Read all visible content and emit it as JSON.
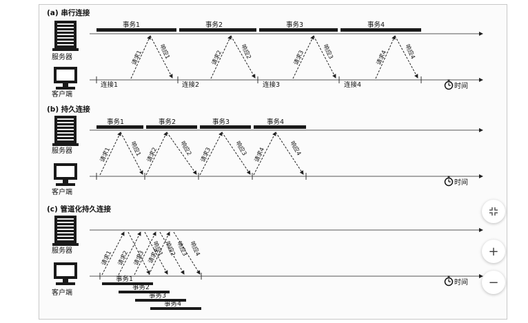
{
  "sections": {
    "a": {
      "title": "(a) 串行连接"
    },
    "b": {
      "title": "(b) 持久连接"
    },
    "c": {
      "title": "(c) 管道化持久连接"
    }
  },
  "labels": {
    "server": "服务器",
    "client": "客户端",
    "time": "时间"
  },
  "transactions": [
    "事务1",
    "事务2",
    "事务3",
    "事务4"
  ],
  "connections": [
    "连接1",
    "连接2",
    "连接3",
    "连接4"
  ],
  "requests": [
    "请求1",
    "请求2",
    "请求3",
    "请求4"
  ],
  "responses": [
    "响应1",
    "响应2",
    "响应3",
    "响应4"
  ],
  "controls": {
    "fit_icon": "fit-screen-icon",
    "zoom_in": "+",
    "zoom_out": "−"
  }
}
